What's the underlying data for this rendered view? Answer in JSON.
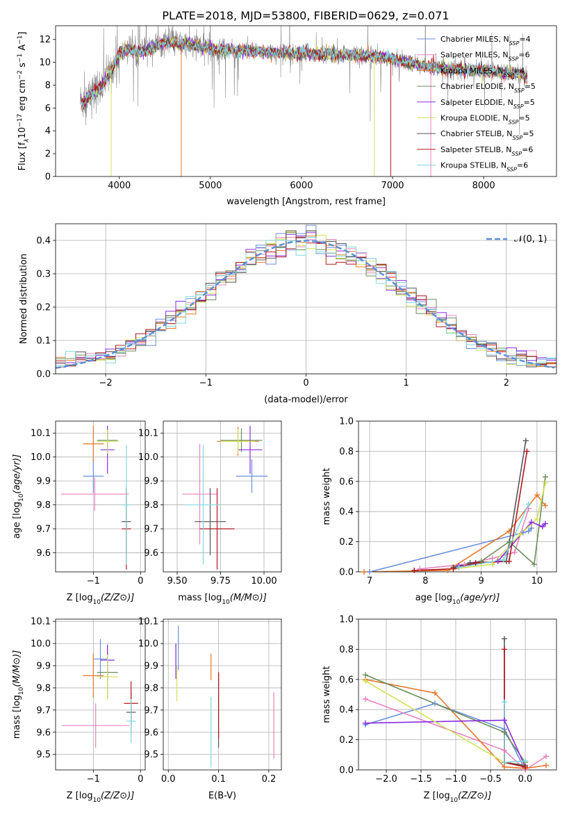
{
  "figure": {
    "title": "PLATE=2018, MJD=53800, FIBERID=0629, z=0.071"
  },
  "models": [
    {
      "name": "Chabrier MILES",
      "nssp": "4",
      "color": "#6a8fdb"
    },
    {
      "name": "Salpeter MILES",
      "nssp": "6",
      "color": "#e882c0"
    },
    {
      "name": "Kroupa MILES",
      "nssp": "4",
      "color": "#e6782c"
    },
    {
      "name": "Chabrier ELODIE",
      "nssp": "5",
      "color": "#6b8e5a"
    },
    {
      "name": "Salpeter ELODIE",
      "nssp": "5",
      "color": "#8a2be2"
    },
    {
      "name": "Kroupa ELODIE",
      "nssp": "5",
      "color": "#d4e157"
    },
    {
      "name": "Chabrier STELIB",
      "nssp": "5",
      "color": "#555555"
    },
    {
      "name": "Salpeter STELIB",
      "nssp": "6",
      "color": "#b0171f"
    },
    {
      "name": "Kroupa STELIB",
      "nssp": "6",
      "color": "#7fd8df"
    }
  ],
  "chart_data": [
    {
      "id": "spectrum",
      "type": "line",
      "xlabel": "wavelength [Angstrom, rest frame]",
      "ylabel_parts": [
        "Flux [f",
        "λ",
        "10",
        "−17",
        " erg cm",
        "−2",
        " s",
        "−1",
        " A",
        "−1",
        "]"
      ],
      "xlim": [
        3300,
        8800
      ],
      "ylim": [
        0,
        13.2
      ],
      "xticks": [
        4000,
        5000,
        6000,
        7000,
        8000
      ],
      "yticks": [
        0,
        2,
        4,
        6,
        8,
        10,
        12
      ],
      "data_color": "#888888",
      "continuum_x": [
        3600,
        3700,
        3800,
        3900,
        4000,
        4100,
        4200,
        4300,
        4400,
        4500,
        4700,
        5000,
        5300,
        5600,
        6000,
        6300,
        6600,
        6900,
        7200,
        7500,
        7800,
        8100,
        8400,
        8500
      ],
      "continuum_y": [
        6.6,
        7.2,
        7.8,
        9.2,
        10.6,
        11.2,
        10.9,
        11.0,
        11.5,
        11.7,
        11.6,
        11.2,
        11.0,
        10.9,
        10.8,
        10.7,
        10.6,
        10.5,
        9.9,
        9.5,
        9.3,
        9.2,
        9.0,
        8.4
      ],
      "dips": [
        {
          "x": 3910,
          "depth": 0.0,
          "color": "#d4e157"
        },
        {
          "x": 4680,
          "depth": 0.0,
          "color": "#e6782c"
        },
        {
          "x": 6800,
          "depth": 0.0,
          "color": "#d4e157"
        },
        {
          "x": 6980,
          "depth": 0.0,
          "color": "#b0171f"
        },
        {
          "x": 7420,
          "depth": 0.0,
          "color": "#e882c0"
        }
      ]
    },
    {
      "id": "residuals",
      "type": "histogram",
      "xlabel": "(data-model)/error",
      "ylabel": "Normed distribution",
      "xlim": [
        -2.5,
        2.5
      ],
      "ylim": [
        0,
        0.45
      ],
      "xticks": [
        -2,
        -1,
        0,
        1,
        2
      ],
      "yticks": [
        0.0,
        0.1,
        0.2,
        0.3,
        0.4
      ],
      "bin_width": 0.1,
      "legend": {
        "label": "𝒩(0, 1)",
        "position": "upper right",
        "color": "#5b8fd9"
      }
    },
    {
      "id": "age_vs_Z",
      "type": "scatter",
      "xlabel": "Z [log10(Z/Z⊙)]",
      "ylabel": "age [log10(age/yr)]",
      "xlim": [
        -1.8,
        0.1
      ],
      "ylim": [
        9.52,
        10.15
      ],
      "xticks": [
        -1,
        0
      ],
      "yticks": [
        9.6,
        9.7,
        9.8,
        9.9,
        10.0,
        10.1
      ],
      "points": [
        {
          "x": -1.0,
          "y": 9.92,
          "xerr": 0.22,
          "yerr": 0.07,
          "color": "#6a8fdb"
        },
        {
          "x": -0.97,
          "y": 9.845,
          "xerr": 0.72,
          "yerr": 0.07,
          "color": "#e882c0"
        },
        {
          "x": -1.0,
          "y": 10.055,
          "xerr": 0.22,
          "yerr": 0.075,
          "color": "#e6782c"
        },
        {
          "x": -0.7,
          "y": 10.07,
          "xerr": 0.22,
          "yerr": 0.05,
          "color": "#6b8e5a"
        },
        {
          "x": -0.7,
          "y": 10.03,
          "xerr": 0.15,
          "yerr": 0.1,
          "color": "#8a2be2"
        },
        {
          "x": -0.7,
          "y": 10.065,
          "xerr": 0.22,
          "yerr": 0.05,
          "color": "#d4e157"
        },
        {
          "x": -0.3,
          "y": 9.73,
          "xerr": 0.1,
          "yerr": 0.14,
          "color": "#555555"
        },
        {
          "x": -0.3,
          "y": 9.7,
          "xerr": 0.1,
          "yerr": 0.17,
          "color": "#b0171f"
        },
        {
          "x": -0.3,
          "y": 9.8,
          "xerr": 0.1,
          "yerr": 0.25,
          "color": "#7fd8df"
        }
      ]
    },
    {
      "id": "age_vs_mass",
      "type": "scatter",
      "xlabel": "mass [log10(M/M⊙)]",
      "ylabel": "",
      "xlim": [
        9.42,
        10.1
      ],
      "ylim": [
        9.52,
        10.15
      ],
      "xticks": [
        9.5,
        9.75,
        10.0
      ],
      "yticks": [
        9.6,
        9.7,
        9.8,
        9.9,
        10.0,
        10.1
      ],
      "points": [
        {
          "x": 9.93,
          "y": 9.92,
          "xerr": 0.09,
          "yerr": 0.07,
          "color": "#6a8fdb"
        },
        {
          "x": 9.63,
          "y": 9.845,
          "xerr": 0.1,
          "yerr": 0.21,
          "color": "#e882c0"
        },
        {
          "x": 9.85,
          "y": 10.065,
          "xerr": 0.12,
          "yerr": 0.06,
          "color": "#e6782c"
        },
        {
          "x": 9.87,
          "y": 10.07,
          "xerr": 0.12,
          "yerr": 0.05,
          "color": "#6b8e5a"
        },
        {
          "x": 9.92,
          "y": 10.03,
          "xerr": 0.07,
          "yerr": 0.1,
          "color": "#8a2be2"
        },
        {
          "x": 9.85,
          "y": 10.065,
          "xerr": 0.1,
          "yerr": 0.05,
          "color": "#d4e157"
        },
        {
          "x": 9.69,
          "y": 9.73,
          "xerr": 0.09,
          "yerr": 0.14,
          "color": "#555555"
        },
        {
          "x": 9.73,
          "y": 9.7,
          "xerr": 0.1,
          "yerr": 0.17,
          "color": "#b0171f"
        },
        {
          "x": 9.65,
          "y": 9.8,
          "xerr": 0.1,
          "yerr": 0.25,
          "color": "#7fd8df"
        }
      ]
    },
    {
      "id": "weight_vs_age",
      "type": "line",
      "xlabel": "age [log10(age/yr)]",
      "ylabel": "mass weight",
      "xlim": [
        6.8,
        10.35
      ],
      "ylim": [
        0,
        1.0
      ],
      "xticks": [
        7,
        8,
        9,
        10
      ],
      "yticks": [
        0.0,
        0.2,
        0.4,
        0.6,
        0.8,
        1.0
      ],
      "series": [
        {
          "color": "#6a8fdb",
          "x": [
            7.0,
            9.75,
            9.85,
            9.9
          ],
          "y": [
            0.0,
            0.26,
            0.27,
            0.29
          ]
        },
        {
          "color": "#e882c0",
          "x": [
            7.9,
            8.7,
            9.2,
            9.6,
            9.85
          ],
          "y": [
            0.02,
            0.05,
            0.09,
            0.13,
            0.42
          ]
        },
        {
          "color": "#e6782c",
          "x": [
            6.9,
            8.4,
            9.5,
            10.0,
            10.15
          ],
          "y": [
            0.0,
            0.01,
            0.27,
            0.51,
            0.44
          ]
        },
        {
          "color": "#6b8e5a",
          "x": [
            8.5,
            9.0,
            9.5,
            9.95,
            10.15
          ],
          "y": [
            0.03,
            0.07,
            0.2,
            0.05,
            0.63
          ]
        },
        {
          "color": "#8a2be2",
          "x": [
            8.6,
            9.3,
            9.9,
            10.1,
            10.15
          ],
          "y": [
            0.04,
            0.07,
            0.33,
            0.3,
            0.32
          ]
        },
        {
          "color": "#d4e157",
          "x": [
            8.5,
            9.2,
            9.7,
            10.0,
            10.15
          ],
          "y": [
            0.02,
            0.05,
            0.25,
            0.35,
            0.59
          ]
        },
        {
          "color": "#555555",
          "x": [
            8.5,
            8.8,
            9.45,
            9.8
          ],
          "y": [
            0.03,
            0.06,
            0.07,
            0.87
          ]
        },
        {
          "color": "#b0171f",
          "x": [
            7.8,
            8.5,
            8.9,
            9.5,
            9.82
          ],
          "y": [
            0.01,
            0.02,
            0.06,
            0.07,
            0.8
          ]
        },
        {
          "color": "#7fd8df",
          "x": [
            8.6,
            9.4,
            9.85
          ],
          "y": [
            0.03,
            0.08,
            0.45
          ]
        }
      ]
    },
    {
      "id": "mass_vs_Z",
      "type": "scatter",
      "xlabel": "Z [log10(Z/Z⊙)]",
      "ylabel": "mass [log10(M/M⊙)]",
      "xlim": [
        -1.8,
        0.1
      ],
      "ylim": [
        9.43,
        10.11
      ],
      "xticks": [
        -1,
        0
      ],
      "yticks": [
        9.5,
        9.6,
        9.7,
        9.8,
        9.9,
        10.0,
        10.1
      ],
      "points": [
        {
          "x": -0.85,
          "y": 9.93,
          "xerr": 0.15,
          "yerr": 0.09,
          "color": "#6a8fdb"
        },
        {
          "x": -0.95,
          "y": 9.63,
          "xerr": 0.72,
          "yerr": 0.1,
          "color": "#e882c0"
        },
        {
          "x": -1.0,
          "y": 9.855,
          "xerr": 0.22,
          "yerr": 0.1,
          "color": "#e6782c"
        },
        {
          "x": -0.7,
          "y": 9.87,
          "xerr": 0.22,
          "yerr": 0.12,
          "color": "#6b8e5a"
        },
        {
          "x": -0.7,
          "y": 9.925,
          "xerr": 0.15,
          "yerr": 0.07,
          "color": "#8a2be2"
        },
        {
          "x": -0.7,
          "y": 9.85,
          "xerr": 0.22,
          "yerr": 0.1,
          "color": "#d4e157"
        },
        {
          "x": -0.2,
          "y": 9.69,
          "xerr": 0.1,
          "yerr": 0.09,
          "color": "#555555"
        },
        {
          "x": -0.2,
          "y": 9.73,
          "xerr": 0.15,
          "yerr": 0.1,
          "color": "#b0171f"
        },
        {
          "x": -0.2,
          "y": 9.65,
          "xerr": 0.1,
          "yerr": 0.1,
          "color": "#7fd8df"
        }
      ]
    },
    {
      "id": "mass_vs_ebv",
      "type": "scatter",
      "xlabel": "E(B-V)",
      "ylabel": "",
      "xlim": [
        -0.01,
        0.225
      ],
      "ylim": [
        9.43,
        10.11
      ],
      "xticks": [
        0.0,
        0.1,
        0.2
      ],
      "yticks": [
        9.5,
        9.6,
        9.7,
        9.8,
        9.9,
        10.0,
        10.1
      ],
      "points": [
        {
          "x": 0.02,
          "y": 9.98,
          "yerr": 0.1,
          "color": "#6a8fdb"
        },
        {
          "x": 0.21,
          "y": 9.63,
          "yerr": 0.15,
          "color": "#e882c0"
        },
        {
          "x": 0.085,
          "y": 9.895,
          "yerr": 0.06,
          "color": "#e6782c"
        },
        {
          "x": 0.015,
          "y": 9.95,
          "yerr": 0.05,
          "color": "#6b8e5a"
        },
        {
          "x": 0.015,
          "y": 9.92,
          "yerr": 0.08,
          "color": "#8a2be2"
        },
        {
          "x": 0.017,
          "y": 9.82,
          "yerr": 0.08,
          "color": "#d4e157"
        },
        {
          "x": 0.1,
          "y": 9.7,
          "yerr": 0.17,
          "color": "#555555"
        },
        {
          "x": 0.1,
          "y": 9.72,
          "yerr": 0.15,
          "color": "#b0171f"
        },
        {
          "x": 0.085,
          "y": 9.6,
          "yerr": 0.16,
          "color": "#7fd8df"
        }
      ]
    },
    {
      "id": "weight_vs_Z",
      "type": "line",
      "xlabel": "Z [log10(Z/Z⊙)]",
      "ylabel": "mass weight",
      "xlim": [
        -2.4,
        0.45
      ],
      "ylim": [
        0,
        1.0
      ],
      "xticks": [
        -2.0,
        -1.5,
        -1.0,
        -0.5,
        0.0
      ],
      "yticks": [
        0.0,
        0.2,
        0.4,
        0.6,
        0.8,
        1.0
      ],
      "series": [
        {
          "color": "#6a8fdb",
          "x": [
            -2.3,
            -1.3,
            -0.3,
            0.0
          ],
          "y": [
            0.3,
            0.44,
            0.27,
            0.0
          ]
        },
        {
          "color": "#e882c0",
          "x": [
            -2.3,
            -0.3,
            0.0,
            0.3
          ],
          "y": [
            0.47,
            0.13,
            0.0,
            0.09
          ]
        },
        {
          "color": "#e6782c",
          "x": [
            -2.3,
            -1.3,
            -0.3,
            0.0,
            0.3
          ],
          "y": [
            0.6,
            0.51,
            0.02,
            0.01,
            0.03
          ]
        },
        {
          "color": "#6b8e5a",
          "x": [
            -2.3,
            -0.3,
            0.0
          ],
          "y": [
            0.63,
            0.25,
            0.05
          ]
        },
        {
          "color": "#8a2be2",
          "x": [
            -2.3,
            -0.3,
            0.0
          ],
          "y": [
            0.31,
            0.33,
            0.02
          ]
        },
        {
          "color": "#d4e157",
          "x": [
            -2.3,
            -0.3,
            0.0
          ],
          "y": [
            0.59,
            0.05,
            0.03
          ]
        },
        {
          "color": "#555555",
          "x": [
            -0.3,
            -0.3,
            0.0
          ],
          "y": [
            0.87,
            0.05,
            0.03
          ]
        },
        {
          "color": "#b0171f",
          "x": [
            -0.3,
            -0.3,
            0.0
          ],
          "y": [
            0.8,
            0.05,
            0.02
          ]
        },
        {
          "color": "#7fd8df",
          "x": [
            -0.3,
            -0.3,
            0.0
          ],
          "y": [
            0.45,
            0.05,
            0.06
          ]
        }
      ]
    }
  ]
}
